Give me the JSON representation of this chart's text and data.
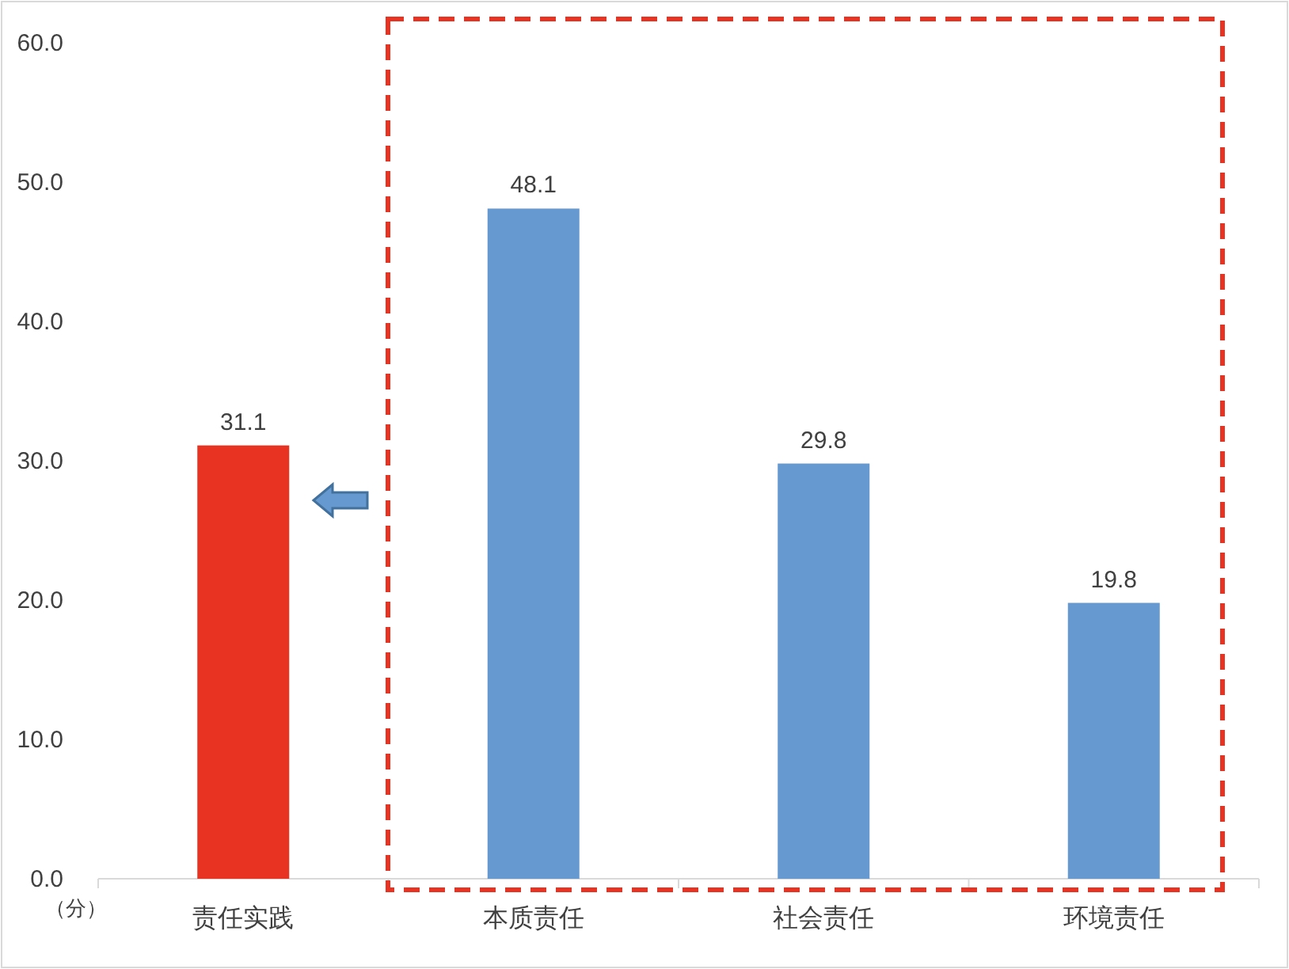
{
  "chart_data": {
    "type": "bar",
    "ylabel": "（分）",
    "categories": [
      "责任实践",
      "本质责任",
      "社会责任",
      "环境责任"
    ],
    "values": [
      31.1,
      48.1,
      29.8,
      19.8
    ],
    "colors": [
      "#e83323",
      "#6699d0",
      "#6699d0",
      "#6699d0"
    ],
    "ylim": [
      0,
      60
    ],
    "yticks": [
      {
        "value": 0,
        "label": "0.0"
      },
      {
        "value": 10,
        "label": "10.0"
      },
      {
        "value": 20,
        "label": "20.0"
      },
      {
        "value": 30,
        "label": "30.0"
      },
      {
        "value": 40,
        "label": "40.0"
      },
      {
        "value": 50,
        "label": "50.0"
      },
      {
        "value": 60,
        "label": "60.0"
      }
    ],
    "data_labels": true
  }
}
